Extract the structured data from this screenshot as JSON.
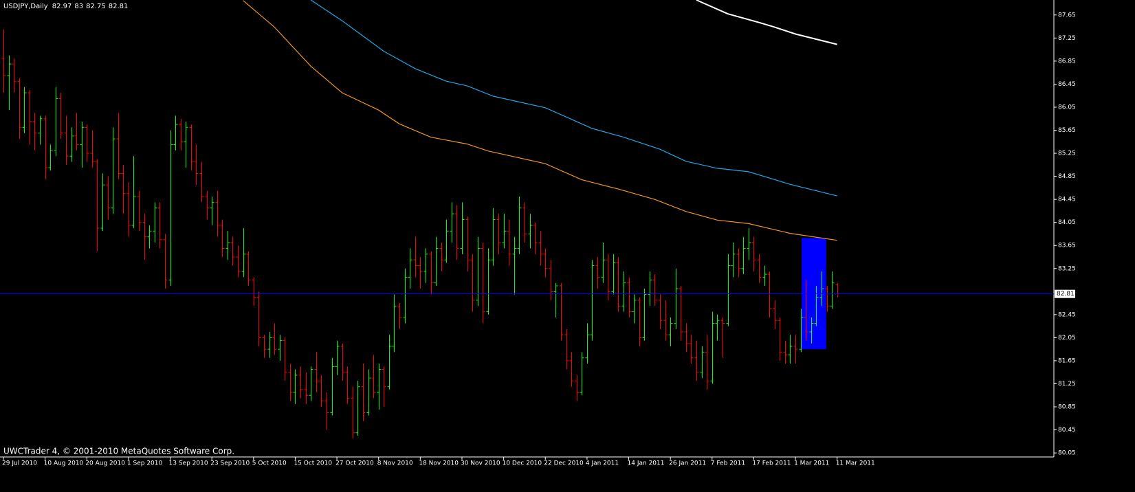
{
  "chart_data": {
    "type": "ohlc",
    "title": "USDJPY,Daily",
    "footer": "UWCTrader 4, © 2001-2010 MetaQuotes Software Corp.",
    "up_color": "#00ff00",
    "down_color": "#ff0000",
    "price_line_color": "#0000ff",
    "xlim": [
      -0.66,
      201.6
    ],
    "ylim": [
      79.98,
      87.91
    ],
    "yticks": [
      87.65,
      87.25,
      86.85,
      86.45,
      86.05,
      85.65,
      85.25,
      84.85,
      84.45,
      84.05,
      83.65,
      83.25,
      82.45,
      82.05,
      81.65,
      81.25,
      80.85,
      80.45,
      80.05
    ],
    "xticks": [
      {
        "value": 0,
        "label": "29 Jul 2010"
      },
      {
        "value": 8,
        "label": "10 Aug 2010"
      },
      {
        "value": 16,
        "label": "20 Aug 2010"
      },
      {
        "value": 24,
        "label": "1 Sep 2010"
      },
      {
        "value": 32,
        "label": "13 Sep 2010"
      },
      {
        "value": 40,
        "label": "23 Sep 2010"
      },
      {
        "value": 48,
        "label": "5 Oct 2010"
      },
      {
        "value": 56,
        "label": "15 Oct 2010"
      },
      {
        "value": 64,
        "label": "27 Oct 2010"
      },
      {
        "value": 72,
        "label": "8 Nov 2010"
      },
      {
        "value": 80,
        "label": "18 Nov 2010"
      },
      {
        "value": 88,
        "label": "30 Nov 2010"
      },
      {
        "value": 96,
        "label": "10 Dec 2010"
      },
      {
        "value": 104,
        "label": "22 Dec 2010"
      },
      {
        "value": 112,
        "label": "4 Jan 2011"
      },
      {
        "value": 120,
        "label": "14 Jan 2011"
      },
      {
        "value": 128,
        "label": "26 Jan 2011"
      },
      {
        "value": 136,
        "label": "7 Feb 2011"
      },
      {
        "value": 144,
        "label": "17 Feb 2011"
      },
      {
        "value": 152,
        "label": "1 Mar 2011"
      },
      {
        "value": 160,
        "label": "11 Mar 2011"
      }
    ],
    "bars": [
      [
        86.9,
        87.4,
        86.3,
        86.6
      ],
      [
        86.6,
        86.95,
        86.0,
        86.8
      ],
      [
        86.8,
        86.9,
        86.3,
        86.5
      ],
      [
        86.5,
        86.55,
        85.5,
        85.7
      ],
      [
        85.7,
        86.4,
        85.6,
        86.3
      ],
      [
        86.3,
        86.35,
        85.4,
        85.8
      ],
      [
        85.8,
        85.95,
        85.3,
        85.6
      ],
      [
        85.6,
        85.9,
        85.4,
        85.85
      ],
      [
        85.85,
        85.9,
        84.8,
        85.0
      ],
      [
        85.0,
        85.4,
        84.95,
        85.3
      ],
      [
        85.3,
        86.4,
        85.2,
        86.2
      ],
      [
        86.2,
        86.3,
        85.5,
        85.6
      ],
      [
        85.6,
        85.9,
        85.05,
        85.2
      ],
      [
        85.2,
        85.7,
        85.1,
        85.55
      ],
      [
        85.55,
        85.95,
        85.3,
        85.4
      ],
      [
        85.4,
        85.8,
        85.0,
        85.7
      ],
      [
        85.7,
        85.75,
        85.1,
        85.25
      ],
      [
        85.25,
        85.65,
        85.0,
        85.1
      ],
      [
        85.1,
        85.15,
        83.55,
        83.95
      ],
      [
        83.95,
        84.9,
        83.9,
        84.7
      ],
      [
        84.7,
        84.85,
        84.1,
        84.3
      ],
      [
        84.3,
        85.7,
        84.2,
        85.5
      ],
      [
        85.5,
        85.95,
        84.8,
        84.9
      ],
      [
        84.9,
        85.05,
        84.2,
        84.55
      ],
      [
        84.55,
        84.75,
        83.8,
        84.0
      ],
      [
        84.0,
        85.2,
        83.95,
        84.5
      ],
      [
        84.5,
        84.6,
        83.9,
        84.05
      ],
      [
        84.05,
        84.2,
        83.4,
        83.8
      ],
      [
        83.8,
        84.0,
        83.6,
        83.9
      ],
      [
        83.9,
        84.4,
        83.7,
        84.3
      ],
      [
        84.3,
        84.4,
        83.6,
        83.75
      ],
      [
        83.75,
        83.85,
        82.9,
        83.05
      ],
      [
        83.05,
        85.65,
        82.95,
        85.4
      ],
      [
        85.4,
        85.9,
        85.3,
        85.75
      ],
      [
        85.75,
        85.85,
        85.3,
        85.45
      ],
      [
        85.45,
        85.8,
        85.0,
        85.7
      ],
      [
        85.7,
        85.75,
        84.95,
        85.1
      ],
      [
        85.1,
        85.4,
        84.7,
        84.9
      ],
      [
        84.9,
        85.1,
        84.4,
        84.5
      ],
      [
        84.5,
        84.6,
        84.1,
        84.3
      ],
      [
        84.3,
        84.5,
        84.0,
        84.4
      ],
      [
        84.4,
        84.6,
        83.8,
        84.0
      ],
      [
        84.0,
        84.1,
        83.45,
        83.6
      ],
      [
        83.6,
        83.9,
        83.4,
        83.7
      ],
      [
        83.7,
        83.8,
        83.3,
        83.45
      ],
      [
        83.45,
        83.65,
        83.1,
        83.2
      ],
      [
        83.2,
        83.95,
        83.1,
        83.5
      ],
      [
        83.5,
        83.55,
        82.95,
        83.05
      ],
      [
        83.05,
        83.1,
        82.6,
        82.75
      ],
      [
        82.75,
        82.85,
        81.9,
        82.05
      ],
      [
        82.05,
        82.1,
        81.7,
        81.85
      ],
      [
        81.85,
        82.15,
        81.7,
        82.05
      ],
      [
        82.05,
        82.3,
        81.75,
        81.85
      ],
      [
        81.85,
        82.1,
        81.65,
        82.0
      ],
      [
        82.0,
        82.05,
        81.3,
        81.45
      ],
      [
        81.45,
        81.6,
        80.95,
        81.1
      ],
      [
        81.1,
        81.5,
        80.9,
        81.4
      ],
      [
        81.4,
        81.55,
        81.0,
        81.15
      ],
      [
        81.15,
        81.45,
        80.9,
        81.05
      ],
      [
        81.05,
        81.55,
        80.95,
        81.5
      ],
      [
        81.5,
        81.8,
        81.1,
        81.3
      ],
      [
        81.3,
        81.4,
        80.85,
        80.95
      ],
      [
        80.95,
        81.1,
        80.45,
        80.75
      ],
      [
        80.75,
        81.7,
        80.7,
        81.55
      ],
      [
        81.55,
        82.0,
        81.4,
        81.9
      ],
      [
        81.9,
        81.95,
        81.3,
        81.45
      ],
      [
        81.45,
        81.55,
        80.9,
        81.0
      ],
      [
        81.0,
        81.2,
        80.3,
        80.4
      ],
      [
        80.4,
        81.3,
        80.35,
        81.2
      ],
      [
        81.2,
        81.6,
        80.6,
        80.75
      ],
      [
        80.75,
        81.5,
        80.7,
        81.35
      ],
      [
        81.35,
        81.75,
        81.0,
        81.1
      ],
      [
        81.1,
        81.6,
        80.8,
        81.5
      ],
      [
        81.5,
        81.55,
        80.85,
        81.2
      ],
      [
        81.2,
        82.1,
        81.15,
        81.9
      ],
      [
        81.9,
        82.8,
        81.8,
        82.6
      ],
      [
        82.6,
        82.65,
        82.2,
        82.4
      ],
      [
        82.4,
        83.25,
        82.3,
        83.1
      ],
      [
        83.1,
        83.6,
        82.9,
        83.4
      ],
      [
        83.4,
        83.8,
        83.1,
        83.3
      ],
      [
        83.3,
        83.45,
        82.9,
        83.2
      ],
      [
        83.2,
        83.6,
        83.0,
        83.5
      ],
      [
        83.5,
        83.55,
        82.8,
        83.0
      ],
      [
        83.0,
        83.8,
        82.95,
        83.6
      ],
      [
        83.6,
        83.7,
        83.2,
        83.4
      ],
      [
        83.4,
        84.1,
        83.35,
        83.9
      ],
      [
        83.9,
        84.4,
        83.7,
        84.2
      ],
      [
        84.2,
        84.35,
        83.4,
        83.6
      ],
      [
        83.6,
        84.4,
        83.5,
        84.1
      ],
      [
        84.1,
        84.15,
        83.2,
        83.4
      ],
      [
        83.4,
        83.5,
        82.5,
        82.7
      ],
      [
        82.7,
        83.8,
        82.6,
        83.6
      ],
      [
        83.6,
        83.7,
        82.3,
        82.5
      ],
      [
        82.5,
        83.6,
        82.45,
        83.4
      ],
      [
        83.4,
        84.3,
        83.3,
        84.1
      ],
      [
        84.1,
        84.2,
        83.5,
        83.7
      ],
      [
        83.7,
        84.2,
        83.6,
        83.9
      ],
      [
        83.9,
        84.1,
        83.3,
        83.5
      ],
      [
        83.5,
        83.8,
        82.8,
        83.6
      ],
      [
        83.6,
        84.5,
        83.5,
        84.3
      ],
      [
        84.3,
        84.4,
        83.7,
        83.85
      ],
      [
        83.85,
        84.2,
        83.6,
        84.0
      ],
      [
        84.0,
        84.05,
        83.5,
        83.7
      ],
      [
        83.7,
        83.9,
        83.3,
        83.5
      ],
      [
        83.5,
        83.6,
        83.1,
        83.25
      ],
      [
        83.25,
        83.4,
        82.7,
        82.85
      ],
      [
        82.85,
        83.0,
        82.4,
        82.95
      ],
      [
        82.95,
        83.0,
        82.0,
        82.1
      ],
      [
        82.1,
        82.2,
        81.5,
        81.65
      ],
      [
        81.65,
        81.8,
        81.2,
        81.3
      ],
      [
        81.3,
        81.4,
        80.95,
        81.1
      ],
      [
        81.1,
        81.8,
        81.05,
        81.7
      ],
      [
        81.7,
        82.3,
        81.6,
        82.1
      ],
      [
        82.1,
        83.4,
        82.0,
        83.3
      ],
      [
        83.3,
        83.45,
        82.9,
        83.1
      ],
      [
        83.1,
        83.7,
        83.0,
        83.4
      ],
      [
        83.4,
        83.5,
        82.7,
        82.85
      ],
      [
        82.85,
        83.5,
        82.8,
        83.35
      ],
      [
        83.35,
        83.45,
        82.5,
        82.6
      ],
      [
        82.6,
        83.2,
        82.5,
        83.0
      ],
      [
        83.0,
        83.1,
        82.4,
        82.5
      ],
      [
        82.5,
        82.8,
        82.3,
        82.7
      ],
      [
        82.7,
        82.75,
        81.9,
        82.05
      ],
      [
        82.05,
        82.9,
        82.0,
        82.8
      ],
      [
        82.8,
        83.2,
        82.6,
        83.05
      ],
      [
        83.05,
        83.15,
        82.6,
        82.7
      ],
      [
        82.7,
        82.8,
        82.2,
        82.35
      ],
      [
        82.35,
        82.7,
        82.0,
        82.1
      ],
      [
        82.1,
        82.4,
        81.9,
        82.3
      ],
      [
        82.3,
        83.25,
        82.2,
        82.9
      ],
      [
        82.9,
        82.95,
        82.0,
        82.15
      ],
      [
        82.15,
        82.3,
        81.8,
        81.95
      ],
      [
        81.95,
        82.1,
        81.6,
        81.7
      ],
      [
        81.7,
        82.0,
        81.3,
        81.45
      ],
      [
        81.45,
        81.9,
        81.35,
        81.8
      ],
      [
        81.8,
        82.1,
        81.15,
        81.3
      ],
      [
        81.3,
        82.5,
        81.25,
        82.3
      ],
      [
        82.3,
        82.45,
        82.0,
        82.35
      ],
      [
        82.35,
        82.4,
        81.7,
        82.3
      ],
      [
        82.3,
        83.5,
        82.25,
        83.3
      ],
      [
        83.3,
        83.7,
        83.1,
        83.5
      ],
      [
        83.5,
        83.6,
        83.1,
        83.25
      ],
      [
        83.25,
        83.8,
        83.15,
        83.6
      ],
      [
        83.6,
        83.95,
        83.4,
        83.7
      ],
      [
        83.7,
        83.8,
        83.2,
        83.4
      ],
      [
        83.4,
        83.5,
        83.0,
        83.1
      ],
      [
        83.1,
        83.3,
        82.95,
        83.15
      ],
      [
        83.15,
        83.2,
        82.4,
        82.55
      ],
      [
        82.55,
        82.7,
        82.2,
        82.35
      ],
      [
        82.35,
        82.4,
        81.65,
        81.8
      ],
      [
        81.8,
        82.0,
        81.6,
        81.75
      ],
      [
        81.75,
        82.1,
        81.6,
        81.9
      ],
      [
        81.9,
        82.1,
        81.6,
        81.85
      ],
      [
        81.85,
        82.55,
        81.8,
        82.4
      ],
      [
        82.4,
        83.05,
        82.0,
        82.15
      ],
      [
        82.15,
        82.4,
        81.95,
        82.3
      ],
      [
        82.3,
        82.95,
        82.25,
        82.75
      ],
      [
        82.75,
        83.2,
        82.6,
        82.9
      ],
      [
        82.9,
        82.95,
        82.5,
        82.6
      ],
      [
        82.6,
        83.2,
        82.55,
        83.0
      ],
      [
        82.97,
        83.0,
        82.75,
        82.81
      ]
    ],
    "lines": [
      {
        "color": "#ffffff",
        "x": [
          133,
          139,
          145,
          148,
          152,
          160
        ],
        "values": [
          87.91,
          87.67,
          87.52,
          87.44,
          87.32,
          87.14
        ]
      },
      {
        "color": "#1ea8e8",
        "x": [
          59,
          65,
          73,
          79,
          85,
          89,
          94,
          104,
          108,
          113,
          119,
          126,
          131,
          137,
          143,
          151,
          160
        ],
        "values": [
          87.91,
          87.55,
          87.02,
          86.72,
          86.5,
          86.42,
          86.24,
          86.04,
          85.88,
          85.68,
          85.53,
          85.32,
          85.11,
          84.99,
          84.93,
          84.71,
          84.51
        ]
      },
      {
        "color": "#f0961e",
        "x": [
          46,
          52,
          59,
          65,
          72,
          76,
          82,
          89,
          93,
          98,
          104,
          111,
          118,
          125,
          131,
          137,
          143,
          151,
          160
        ],
        "values": [
          87.9,
          87.44,
          86.76,
          86.3,
          86.0,
          85.76,
          85.53,
          85.41,
          85.29,
          85.19,
          85.07,
          84.79,
          84.63,
          84.45,
          84.24,
          84.09,
          84.03,
          83.86,
          83.74
        ]
      }
    ],
    "rectangle": {
      "x": [
        153.2,
        157.9
      ],
      "y": [
        81.85,
        83.78
      ],
      "color": "#0000ff"
    }
  }
}
